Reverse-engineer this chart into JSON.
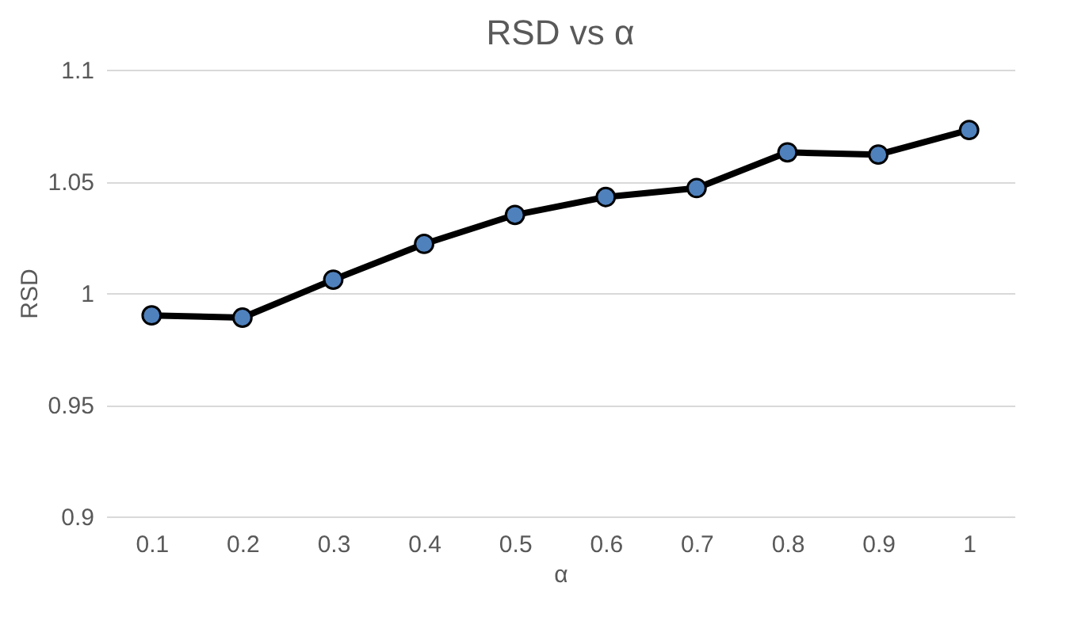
{
  "chart_data": {
    "type": "line",
    "title": "RSD vs α",
    "xlabel": "α",
    "ylabel": "RSD",
    "categories": [
      "0.1",
      "0.2",
      "0.3",
      "0.4",
      "0.5",
      "0.6",
      "0.7",
      "0.8",
      "0.9",
      "1"
    ],
    "series": [
      {
        "color": "#000000",
        "values": [
          0.99,
          0.989,
          1.006,
          1.022,
          1.035,
          1.043,
          1.047,
          1.063,
          1.062,
          1.073
        ]
      }
    ],
    "ylim": [
      0.9,
      1.1
    ],
    "yticks": [
      0.9,
      {
        "value": 0.95,
        "label": "0.95"
      },
      1,
      {
        "value": 1.05,
        "label": "1.05"
      },
      1.1
    ],
    "grid": "y",
    "marker": "circle",
    "line_style": "solid"
  }
}
